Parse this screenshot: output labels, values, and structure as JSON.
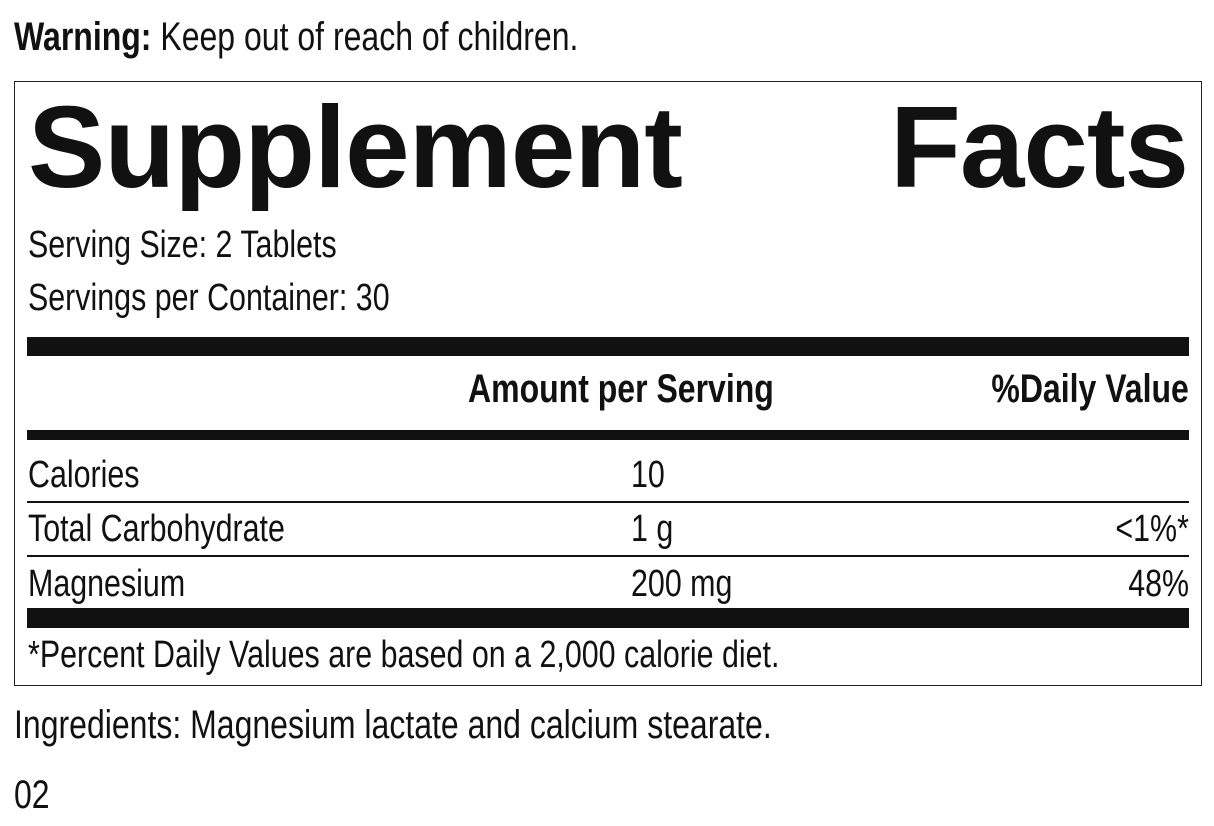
{
  "warning": {
    "label": "Warning:",
    "text": "Keep out of reach of children."
  },
  "facts": {
    "title": "Supplement Facts",
    "serving_size": "Serving Size: 2 Tablets",
    "servings_per_container": "Servings per Container: 30",
    "headers": {
      "amount": "Amount per Serving",
      "daily_value": "%Daily Value"
    },
    "rows": [
      {
        "name": "Calories",
        "amount": "10"
      },
      {
        "name": "Total Carbohydrate",
        "amount": "1 g",
        "daily_value": "<1%*"
      },
      {
        "name": "Magnesium",
        "amount": "200 mg",
        "daily_value": "48%"
      }
    ],
    "footnote": "*Percent Daily Values are based on a 2,000 calorie diet."
  },
  "ingredients": "Ingredients: Magnesium lactate and calcium stearate.",
  "code": "02"
}
